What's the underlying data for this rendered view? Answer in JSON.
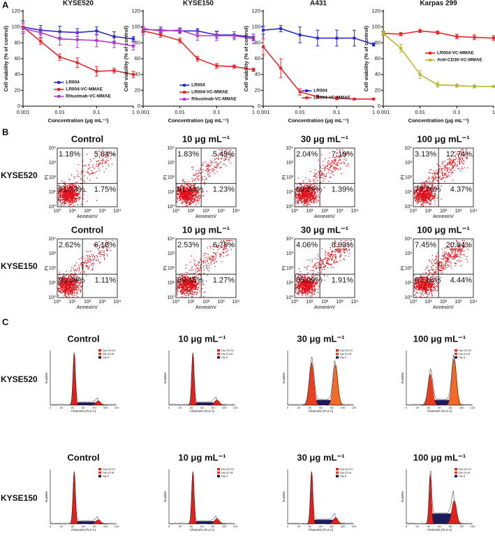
{
  "panel_labels": [
    "A",
    "B",
    "C"
  ],
  "chart_data": [
    {
      "type": "line",
      "title": "KYSE520",
      "x": [
        0.001,
        0.003,
        0.01,
        0.03,
        0.1,
        0.3,
        1
      ],
      "xlim": [
        0.001,
        1
      ],
      "xticks": [
        0.001,
        0.01,
        0.1,
        1
      ],
      "log_x": true,
      "ylim": [
        0,
        120
      ],
      "yticks": [
        0,
        20,
        40,
        60,
        80,
        100,
        120
      ],
      "xlabel": "Concentration (μg mL⁻¹)",
      "ylabel": "Cell viability (% of control)",
      "legend": "lower center",
      "series": [
        {
          "name": "LR004",
          "color": "#2a2ad0",
          "values": [
            100,
            96,
            94,
            93,
            95,
            88,
            85
          ],
          "errors": [
            8,
            6,
            7,
            5,
            5,
            6,
            3
          ]
        },
        {
          "name": "LR004-VC-MMAE",
          "color": "#e8262a",
          "values": [
            100,
            82,
            62,
            55,
            44,
            45,
            40
          ],
          "errors": [
            6,
            4,
            4,
            6,
            6,
            3,
            4
          ]
        },
        {
          "name": "Rituximab-VC-MMAE",
          "color": "#b03cc8",
          "values": [
            98,
            93,
            85,
            84,
            83,
            80,
            76
          ],
          "errors": [
            6,
            6,
            8,
            10,
            8,
            6,
            5
          ]
        }
      ]
    },
    {
      "type": "line",
      "title": "KYSE150",
      "x": [
        0.001,
        0.003,
        0.01,
        0.03,
        0.1,
        0.3,
        1
      ],
      "xlim": [
        0.001,
        1
      ],
      "xticks": [
        0.001,
        0.01,
        0.1,
        1
      ],
      "log_x": true,
      "ylim": [
        0,
        120
      ],
      "yticks": [
        0,
        20,
        40,
        60,
        80,
        100,
        120
      ],
      "xlabel": "Concentration (μg mL⁻¹)",
      "ylabel": "Cell viability (% of control)",
      "legend": "lower left",
      "series": [
        {
          "name": "LR004",
          "color": "#2a2ad0",
          "values": [
            97,
            96,
            95,
            95,
            90,
            90,
            87
          ],
          "errors": [
            4,
            4,
            3,
            3,
            4,
            4,
            4
          ]
        },
        {
          "name": "LR004-VC-MMAE",
          "color": "#e8262a",
          "values": [
            95,
            90,
            83,
            60,
            51,
            50,
            46
          ],
          "errors": [
            4,
            3,
            3,
            3,
            3,
            2,
            2
          ]
        },
        {
          "name": "Rituximab-VC-MMAE",
          "color": "#b03cc8",
          "values": [
            98,
            95,
            96,
            89,
            89,
            89,
            85
          ],
          "errors": [
            3,
            3,
            3,
            6,
            6,
            5,
            6
          ]
        }
      ]
    },
    {
      "type": "line",
      "title": "A431",
      "x": [
        0.001,
        0.003,
        0.01,
        0.03,
        0.1,
        0.3,
        1
      ],
      "xlim": [
        0.001,
        1
      ],
      "xticks": [
        0.001,
        0.01,
        0.1,
        1
      ],
      "log_x": true,
      "ylim": [
        0,
        120
      ],
      "yticks": [
        0,
        20,
        40,
        60,
        80,
        100,
        120
      ],
      "xlabel": "Concentration (μg mL⁻¹)",
      "ylabel": "Cell viability (% of control)",
      "legend": "lower right",
      "series": [
        {
          "name": "LR004",
          "color": "#2a2ad0",
          "values": [
            96,
            98,
            90,
            86,
            86,
            86,
            78
          ],
          "errors": [
            5,
            4,
            10,
            10,
            10,
            10,
            2
          ]
        },
        {
          "name": "LR004-VC-MMAE",
          "color": "#e8262a",
          "values": [
            75,
            48,
            18,
            12,
            10,
            9,
            9
          ],
          "errors": [
            10,
            12,
            4,
            2,
            2,
            1,
            1
          ]
        }
      ]
    },
    {
      "type": "line",
      "title": "Karpas 299",
      "x": [
        0.001,
        0.003,
        0.01,
        0.03,
        0.1,
        0.3,
        1
      ],
      "xlim": [
        0.001,
        1
      ],
      "xticks": [
        0.001,
        0.01,
        0.1,
        1
      ],
      "log_x": true,
      "ylim": [
        0,
        120
      ],
      "yticks": [
        0,
        20,
        40,
        60,
        80,
        100,
        120
      ],
      "xlabel": "Concentration (μg mL⁻¹)",
      "ylabel": "Cell viability (% of control)",
      "legend": "center right",
      "series": [
        {
          "name": "LR004-VC-MMAE",
          "color": "#e8262a",
          "values": [
            92,
            91,
            95,
            93,
            88,
            87,
            86
          ],
          "errors": [
            2,
            2,
            2,
            2,
            3,
            3,
            3
          ]
        },
        {
          "name": "Anti-CD30-VC-MMAE",
          "color": "#b8b82a",
          "values": [
            92,
            73,
            40,
            27,
            26,
            25,
            25
          ],
          "errors": [
            3,
            5,
            5,
            3,
            2,
            2,
            1
          ]
        }
      ]
    }
  ],
  "flow_cytometry": {
    "row_labels": [
      "KYSE520",
      "KYSE150"
    ],
    "xlabel": "AnnexinV",
    "ylabel": "PI",
    "tick_labels": [
      "10⁰",
      "10¹",
      "10²",
      "10³",
      "10⁴"
    ],
    "plots": [
      {
        "title": "Control",
        "upper_left": "1.18%",
        "upper_right": "5.84%",
        "lower_left": "91.23%",
        "lower_right": "1.75%"
      },
      {
        "title": "10 μg mL⁻¹",
        "upper_left": "1.83%",
        "upper_right": "5.49%",
        "lower_left": "91.44%",
        "lower_right": "1.23%"
      },
      {
        "title": "30 μg mL⁻¹",
        "upper_left": "2.04%",
        "upper_right": "7.18%",
        "lower_left": "89.39%",
        "lower_right": "1.39%"
      },
      {
        "title": "100 μg mL⁻¹",
        "upper_left": "3.13%",
        "upper_right": "12.74%",
        "lower_left": "79.76%",
        "lower_right": "4.37%"
      },
      {
        "title": "Control",
        "upper_left": "2.62%",
        "upper_right": "6.18%",
        "lower_left": "90.09%",
        "lower_right": "1.11%"
      },
      {
        "title": "10 μg mL⁻¹",
        "upper_left": "2.53%",
        "upper_right": "6.75%",
        "lower_left": "89.45%",
        "lower_right": "1.27%"
      },
      {
        "title": "30 μg mL⁻¹",
        "upper_left": "4.06%",
        "upper_right": "8.93%",
        "lower_left": "85.09%",
        "lower_right": "1.91%"
      },
      {
        "title": "100 μg mL⁻¹",
        "upper_left": "7.45%",
        "upper_right": "20.94%",
        "lower_left": "67.18%",
        "lower_right": "4.44%"
      }
    ]
  },
  "cell_cycle": {
    "row_labels": [
      "KYSE520",
      "KYSE150"
    ],
    "xlabel": "Channels (FL2-A)",
    "ylabel": "Number",
    "xticks": [
      0,
      20,
      40,
      60,
      80,
      100,
      120
    ],
    "legend": [
      "Dip G0-G1",
      "Dip G2-M",
      "Dip S"
    ],
    "plots": [
      {
        "title": "Control"
      },
      {
        "title": "10 μg mL⁻¹"
      },
      {
        "title": "30 μg mL⁻¹"
      },
      {
        "title": "100 μg mL⁻¹"
      },
      {
        "title": "Control"
      },
      {
        "title": "10 μg mL⁻¹"
      },
      {
        "title": "30 μg mL⁻¹"
      },
      {
        "title": "100 μg mL⁻¹"
      }
    ]
  }
}
